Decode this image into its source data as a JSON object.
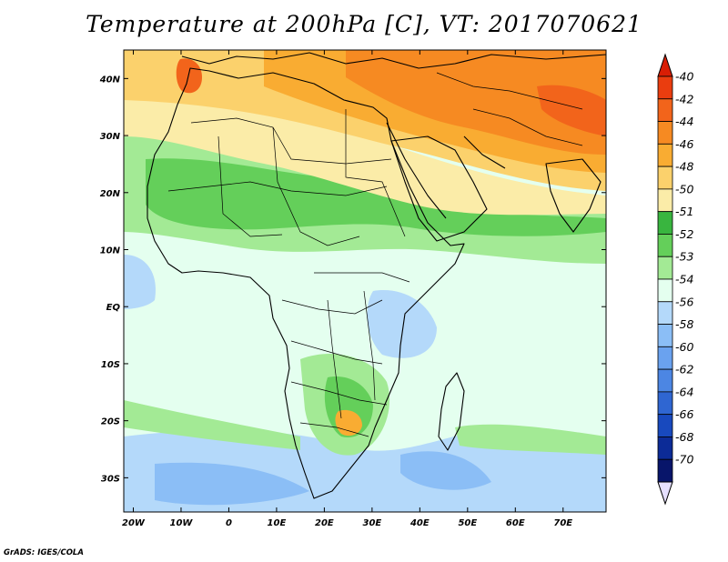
{
  "title": "Temperature at 200hPa [C], VT: 2017070621",
  "credit": "GrADS: IGES/COLA",
  "map": {
    "lat_labels": [
      "40N",
      "30N",
      "20N",
      "10N",
      "EQ",
      "10S",
      "20S",
      "30S"
    ],
    "lat_values": [
      40,
      30,
      20,
      10,
      0,
      -10,
      -20,
      -30
    ],
    "lon_labels": [
      "20W",
      "10W",
      "0",
      "10E",
      "20E",
      "30E",
      "40E",
      "50E",
      "60E",
      "70E"
    ],
    "lon_values": [
      -20,
      -10,
      0,
      10,
      20,
      30,
      40,
      50,
      60,
      70
    ],
    "lat_range": [
      -36,
      45
    ],
    "lon_range": [
      -22,
      79
    ]
  },
  "colorbar": {
    "labels": [
      "-40",
      "-42",
      "-44",
      "-46",
      "-48",
      "-50",
      "-51",
      "-52",
      "-53",
      "-54",
      "-56",
      "-58",
      "-60",
      "-62",
      "-64",
      "-66",
      "-68",
      "-70"
    ],
    "colors": {
      "top_arrow": "#d81e05",
      "bins": [
        "#ea3d0f",
        "#f2641b",
        "#f68a22",
        "#f9ac32",
        "#fbd16c",
        "#fbeca8",
        "#39b53f",
        "#64cf5a",
        "#a3ea95",
        "#e4ffef",
        "#b4d9fa",
        "#8bbef6",
        "#6aa2ef",
        "#4c86e3",
        "#2f66d2",
        "#1849be",
        "#0c2b97",
        "#08156a"
      ],
      "bottom_arrow": "#e6e0ff"
    }
  }
}
